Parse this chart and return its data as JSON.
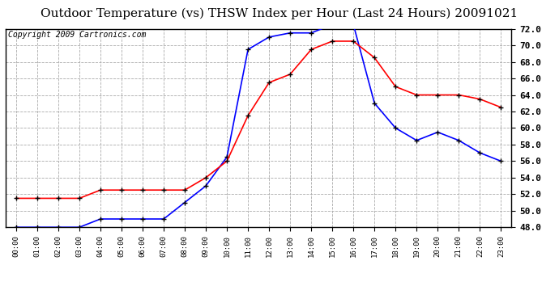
{
  "title": "Outdoor Temperature (vs) THSW Index per Hour (Last 24 Hours) 20091021",
  "copyright": "Copyright 2009 Cartronics.com",
  "hours": [
    0,
    1,
    2,
    3,
    4,
    5,
    6,
    7,
    8,
    9,
    10,
    11,
    12,
    13,
    14,
    15,
    16,
    17,
    18,
    19,
    20,
    21,
    22,
    23
  ],
  "blue_line": [
    48.0,
    48.0,
    48.0,
    48.0,
    49.0,
    49.0,
    49.0,
    49.0,
    51.0,
    53.0,
    56.5,
    69.5,
    71.0,
    71.5,
    71.5,
    72.5,
    72.5,
    63.0,
    60.0,
    58.5,
    59.5,
    58.5,
    57.0,
    56.0
  ],
  "red_line": [
    51.5,
    51.5,
    51.5,
    51.5,
    52.5,
    52.5,
    52.5,
    52.5,
    52.5,
    54.0,
    56.0,
    61.5,
    65.5,
    66.5,
    69.5,
    70.5,
    70.5,
    68.5,
    65.0,
    64.0,
    64.0,
    64.0,
    63.5,
    62.5
  ],
  "ylim": [
    48.0,
    72.0
  ],
  "yticks": [
    48.0,
    50.0,
    52.0,
    54.0,
    56.0,
    58.0,
    60.0,
    62.0,
    64.0,
    66.0,
    68.0,
    70.0,
    72.0
  ],
  "blue_color": "#0000FF",
  "red_color": "#FF0000",
  "bg_color": "#FFFFFF",
  "plot_bg_color": "#FFFFFF",
  "grid_color": "#AAAAAA",
  "title_fontsize": 11,
  "copyright_fontsize": 7
}
